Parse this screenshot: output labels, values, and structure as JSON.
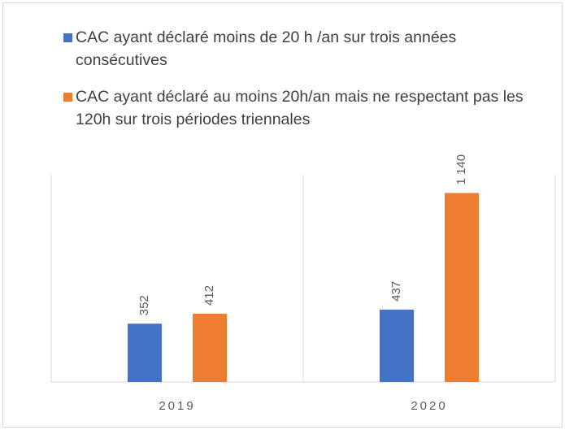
{
  "chart_data": {
    "type": "bar",
    "categories": [
      "2019",
      "2020"
    ],
    "series": [
      {
        "name": "CAC ayant déclaré moins de 20 h /an sur trois années consécutives",
        "color": "#4472c4",
        "values": [
          352,
          437
        ]
      },
      {
        "name": "CAC ayant déclaré au moins 20h/an mais ne respectant pas les 120h sur trois périodes triennales",
        "color": "#ed7d31",
        "values": [
          412,
          1140
        ],
        "value_labels": [
          "412",
          "1 140"
        ]
      }
    ],
    "ylim": [
      0,
      1250
    ],
    "legend": "top"
  }
}
